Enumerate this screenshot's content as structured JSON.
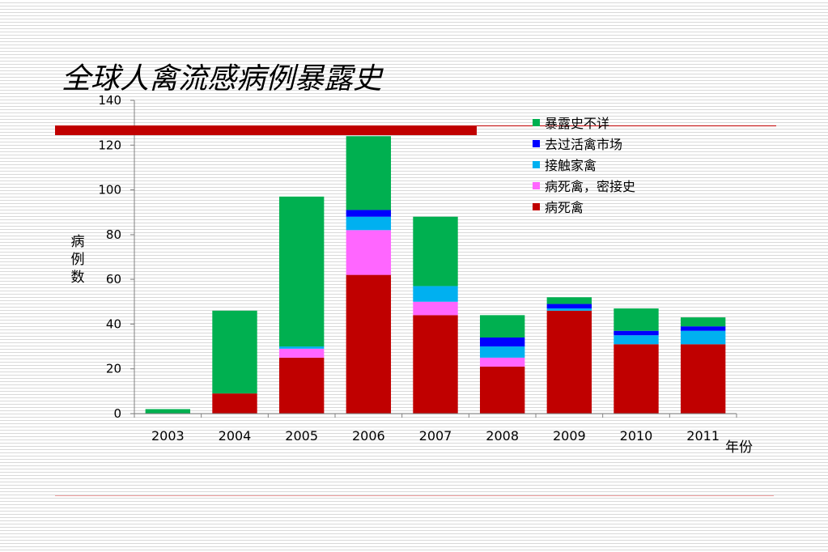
{
  "title": "全球人禽流感病例暴露史",
  "chart_data": {
    "type": "bar",
    "stacked": true,
    "categories": [
      "2003",
      "2004",
      "2005",
      "2006",
      "2007",
      "2008",
      "2009",
      "2010",
      "2011"
    ],
    "series": [
      {
        "name": "病死禽",
        "color": "#c00000",
        "values": [
          0,
          9,
          25,
          62,
          44,
          21,
          46,
          31,
          31
        ]
      },
      {
        "name": "病死禽，密接史",
        "color": "#ff66ff",
        "values": [
          0,
          0,
          4,
          20,
          6,
          4,
          0,
          0,
          0
        ]
      },
      {
        "name": "接触家禽",
        "color": "#00b0f0",
        "values": [
          0,
          0,
          1,
          6,
          7,
          5,
          1,
          4,
          6
        ]
      },
      {
        "name": "去过活禽市场",
        "color": "#0000ff",
        "values": [
          0,
          0,
          0,
          3,
          0,
          4,
          2,
          2,
          2
        ]
      },
      {
        "name": "暴露史不详",
        "color": "#00b050",
        "values": [
          2,
          37,
          67,
          33,
          31,
          10,
          3,
          10,
          4
        ]
      }
    ],
    "legend_order": [
      "暴露史不详",
      "去过活禽市场",
      "接触家禽",
      "病死禽，密接史",
      "病死禽"
    ],
    "xlabel": "年份",
    "ylabel": "病例数",
    "ylim": [
      0,
      140
    ],
    "yticks": [
      0,
      20,
      40,
      60,
      80,
      100,
      120,
      140
    ],
    "grid": false,
    "legend_position": "top-right"
  }
}
